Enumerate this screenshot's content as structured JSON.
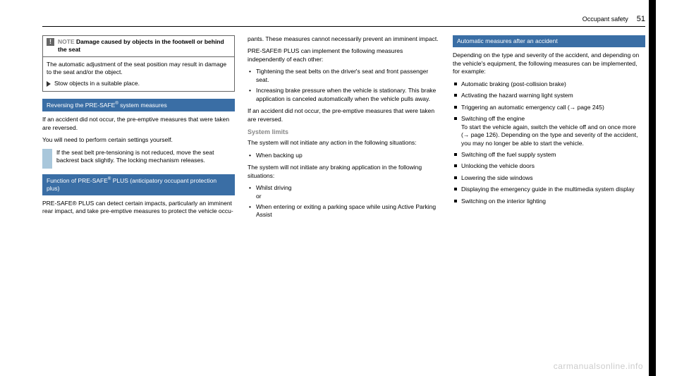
{
  "header": {
    "section": "Occupant safety",
    "page": "51"
  },
  "col1": {
    "note_title_pre": "NOTE",
    "note_title": " Damage caused by objects in the footwell or behind the seat",
    "note_body": "The automatic adjustment of the seat position may result in damage to the seat and/or the object.",
    "note_action": "Stow objects in a suitable place.",
    "bar1_pre": "Reversing the PRE-SAFE",
    "bar1_post": " system measures",
    "p1": "If an accident did not occur, the pre-emptive measures that were taken are reversed.",
    "p2": "You will need to perform certain settings yourself.",
    "info": "If the seat belt pre-tensioning is not reduced, move the seat backrest back slightly.\nThe locking mechanism releases.",
    "bar2_pre": "Function of PRE-SAFE",
    "bar2_post": " PLUS (anticipatory occupant protection plus)",
    "p3": "PRE-SAFE® PLUS can detect certain impacts, particularly an imminent rear impact, and take pre-emptive measures to protect the vehicle occu-"
  },
  "col2": {
    "p1": "pants. These measures cannot necessarily prevent an imminent impact.",
    "p2": "PRE-SAFE® PLUS can implement the following measures independently of each other:",
    "b1": "Tightening the seat belts on the driver's seat and front passenger seat.",
    "b2": "Increasing brake pressure when the vehicle is stationary. This brake application is canceled automatically when the vehicle pulls away.",
    "p3": "If an accident did not occur, the pre-emptive measures that were taken are reversed.",
    "limits": "System limits",
    "p4": "The system will not initiate any action in the following situations:",
    "b3": "When backing up",
    "p5": "The system will not initiate any braking application in the following situations:",
    "b4": "Whilst driving",
    "or": "or",
    "b5": "When entering or exiting a parking space while using Active Parking Assist"
  },
  "col3": {
    "bar": "Automatic measures after an accident",
    "p1": "Depending on the type and severity of the accident, and depending on the vehicle's equipment, the following measures can be implemented, for example:",
    "s1": "Automatic braking (post-collision brake)",
    "s2": "Activating the hazard warning light system",
    "s3": "Triggering an automatic emergency call (→ page 245)",
    "s4": "Switching off the engine",
    "s4b": "To start the vehicle again, switch the vehicle off and on once more (→ page 126). Depending on the type and severity of the accident, you may no longer be able to start the vehicle.",
    "s5": "Switching off the fuel supply system",
    "s6": "Unlocking the vehicle doors",
    "s7": "Lowering the side windows",
    "s8": "Displaying the emergency guide in the multimedia system display",
    "s9": "Switching on the interior lighting"
  },
  "watermark": "carmanualsonline.info"
}
